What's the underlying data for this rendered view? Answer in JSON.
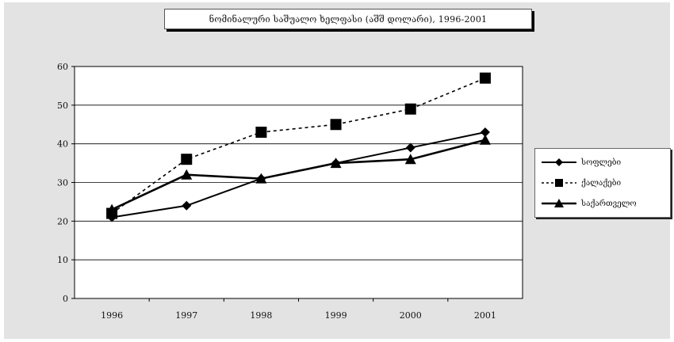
{
  "chart_data": {
    "type": "line",
    "title": "ნომინალური საშუალო ხელფასი (აშშ დოლარი), 1996-2001",
    "xlabel": "",
    "ylabel": "",
    "x": [
      "1996",
      "1997",
      "1998",
      "1999",
      "2000",
      "2001"
    ],
    "ylim": [
      0,
      60
    ],
    "yticks": [
      0,
      10,
      20,
      30,
      40,
      50,
      60
    ],
    "grid": true,
    "legend_position": "right",
    "series": [
      {
        "name": "სოფლები",
        "marker": "diamond",
        "line": "solid",
        "values": [
          21,
          24,
          31,
          35,
          39,
          43
        ]
      },
      {
        "name": "ქალაქები",
        "marker": "square",
        "line": "dotted",
        "values": [
          22,
          36,
          43,
          45,
          49,
          57
        ]
      },
      {
        "name": "საქართველო",
        "marker": "triangle",
        "line": "solid",
        "values": [
          23,
          32,
          31,
          35,
          36,
          41
        ]
      }
    ]
  }
}
